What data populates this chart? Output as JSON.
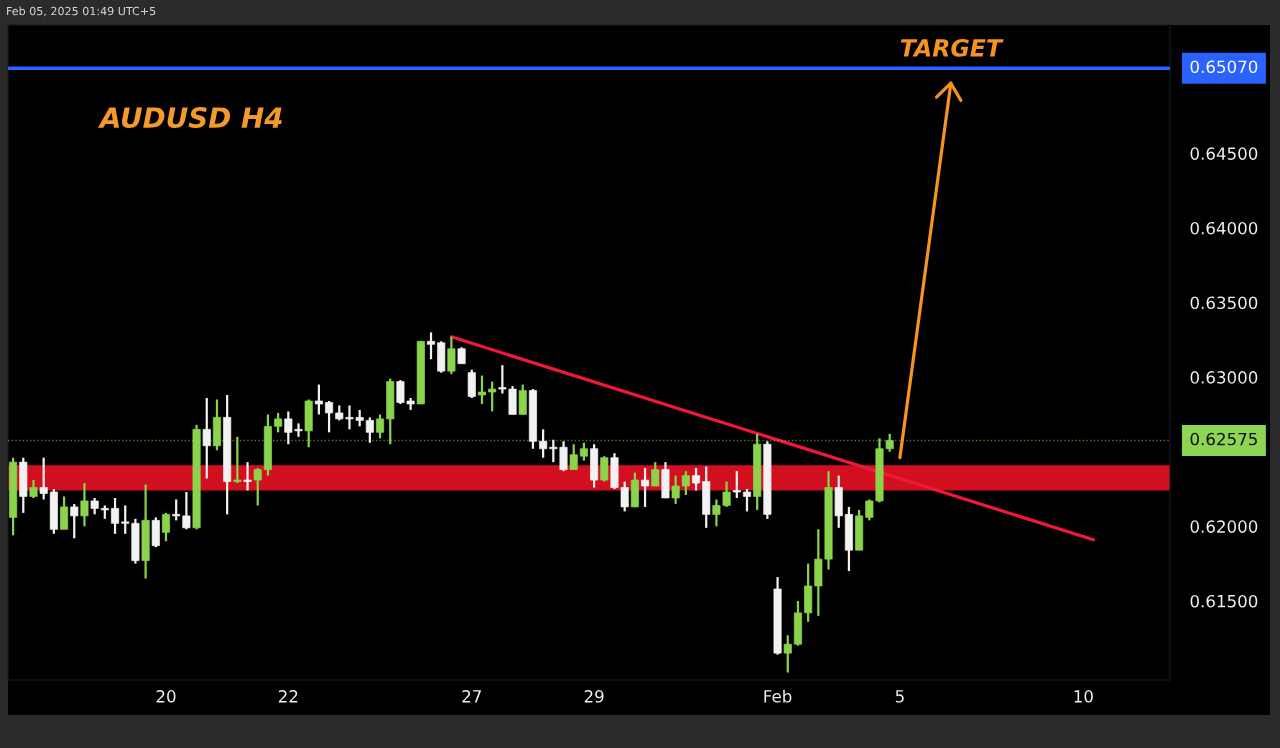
{
  "chart_data": {
    "type": "candlestick",
    "title": "AUDUSD H4",
    "annotations": [
      "TARGET",
      "Feb 05, 2025 01:49 UTC+5"
    ],
    "categories": [
      null,
      null,
      null,
      null,
      null,
      null,
      null,
      null,
      null,
      null,
      null,
      null,
      null,
      null,
      null,
      "20",
      null,
      null,
      null,
      null,
      null,
      null,
      null,
      null,
      null,
      null,
      null,
      "22",
      null,
      null,
      null,
      null,
      null,
      null,
      null,
      null,
      null,
      null,
      null,
      null,
      null,
      null,
      null,
      null,
      null,
      "27",
      null,
      null,
      null,
      null,
      null,
      null,
      null,
      null,
      null,
      null,
      null,
      "29",
      null,
      null,
      null,
      null,
      null,
      null,
      null,
      null,
      null,
      null,
      null,
      null,
      null,
      null,
      null,
      null,
      null,
      "Feb",
      null,
      null,
      null,
      null,
      null,
      null,
      null,
      null,
      null,
      null,
      null,
      "5",
      null,
      null,
      null,
      null,
      null,
      null,
      null,
      null,
      null,
      null,
      null,
      null,
      null,
      null,
      null,
      null,
      null,
      "10",
      null,
      null,
      null,
      null,
      null,
      null,
      null,
      null
    ],
    "ohlc": [
      [
        0.6206,
        0.6246,
        0.6194,
        0.6243
      ],
      [
        0.6243,
        0.6246,
        0.6209,
        0.622
      ],
      [
        0.622,
        0.6231,
        0.6219,
        0.6226
      ],
      [
        0.6226,
        0.6246,
        0.6218,
        0.6222
      ],
      [
        0.6223,
        0.6225,
        0.6195,
        0.6198
      ],
      [
        0.6198,
        0.622,
        0.6198,
        0.6213
      ],
      [
        0.6213,
        0.6215,
        0.6192,
        0.6207
      ],
      [
        0.6207,
        0.6229,
        0.62,
        0.6217
      ],
      [
        0.6217,
        0.6219,
        0.6208,
        0.6212
      ],
      [
        0.6212,
        0.6214,
        0.6205,
        0.6211
      ],
      [
        0.6212,
        0.6219,
        0.6195,
        0.6202
      ],
      [
        0.6203,
        0.6214,
        0.6195,
        0.6202
      ],
      [
        0.6202,
        0.6205,
        0.6175,
        0.6177
      ],
      [
        0.6177,
        0.6228,
        0.6165,
        0.6204
      ],
      [
        0.6204,
        0.6206,
        0.6186,
        0.6187
      ],
      [
        0.6196,
        0.6209,
        0.619,
        0.6208
      ],
      [
        0.6208,
        0.6218,
        0.6204,
        0.6207
      ],
      [
        0.6207,
        0.6223,
        0.6198,
        0.6199
      ],
      [
        0.6199,
        0.6268,
        0.6198,
        0.6265
      ],
      [
        0.6265,
        0.6286,
        0.6232,
        0.6254
      ],
      [
        0.6254,
        0.6285,
        0.6251,
        0.6273
      ],
      [
        0.6273,
        0.6288,
        0.6208,
        0.623
      ],
      [
        0.623,
        0.626,
        0.6229,
        0.6231
      ],
      [
        0.6231,
        0.6243,
        0.6224,
        0.623
      ],
      [
        0.6231,
        0.6239,
        0.6214,
        0.6238
      ],
      [
        0.6238,
        0.6275,
        0.6234,
        0.6267
      ],
      [
        0.6267,
        0.6276,
        0.6263,
        0.6272
      ],
      [
        0.6272,
        0.6277,
        0.6255,
        0.6263
      ],
      [
        0.6265,
        0.6269,
        0.626,
        0.6264
      ],
      [
        0.6264,
        0.6285,
        0.6253,
        0.6284
      ],
      [
        0.6284,
        0.6295,
        0.6275,
        0.6282
      ],
      [
        0.6283,
        0.6284,
        0.6263,
        0.6276
      ],
      [
        0.6276,
        0.6281,
        0.6271,
        0.6272
      ],
      [
        0.6273,
        0.6281,
        0.6265,
        0.6272
      ],
      [
        0.6273,
        0.6278,
        0.6267,
        0.6271
      ],
      [
        0.6271,
        0.6273,
        0.6256,
        0.6263
      ],
      [
        0.6263,
        0.6275,
        0.6259,
        0.6272
      ],
      [
        0.6272,
        0.6299,
        0.6255,
        0.6297
      ],
      [
        0.6297,
        0.6298,
        0.6282,
        0.6283
      ],
      [
        0.6284,
        0.6286,
        0.6278,
        0.6282
      ],
      [
        0.6282,
        0.6324,
        0.6282,
        0.6324
      ],
      [
        0.6324,
        0.633,
        0.6312,
        0.6322
      ],
      [
        0.6323,
        0.6324,
        0.6303,
        0.6304
      ],
      [
        0.6304,
        0.6327,
        0.6302,
        0.6319
      ],
      [
        0.6319,
        0.632,
        0.6309,
        0.6309
      ],
      [
        0.6303,
        0.6305,
        0.6286,
        0.6287
      ],
      [
        0.6288,
        0.6301,
        0.6282,
        0.629
      ],
      [
        0.629,
        0.6297,
        0.6277,
        0.6292
      ],
      [
        0.6293,
        0.6308,
        0.6289,
        0.6292
      ],
      [
        0.6292,
        0.6294,
        0.6275,
        0.6275
      ],
      [
        0.6275,
        0.6295,
        0.6275,
        0.6291
      ],
      [
        0.6291,
        0.6292,
        0.6252,
        0.6257
      ],
      [
        0.6257,
        0.6265,
        0.6246,
        0.6252
      ],
      [
        0.6253,
        0.6258,
        0.6243,
        0.6252
      ],
      [
        0.6253,
        0.6257,
        0.6237,
        0.6238
      ],
      [
        0.6238,
        0.6255,
        0.6238,
        0.6248
      ],
      [
        0.6247,
        0.6256,
        0.6244,
        0.6252
      ],
      [
        0.6252,
        0.6255,
        0.6226,
        0.6231
      ],
      [
        0.6231,
        0.6247,
        0.623,
        0.6246
      ],
      [
        0.6246,
        0.6249,
        0.6225,
        0.6226
      ],
      [
        0.6226,
        0.623,
        0.621,
        0.6213
      ],
      [
        0.6213,
        0.6236,
        0.6213,
        0.6231
      ],
      [
        0.6231,
        0.6239,
        0.6213,
        0.6227
      ],
      [
        0.6227,
        0.6243,
        0.6227,
        0.6238
      ],
      [
        0.6238,
        0.6243,
        0.6219,
        0.6219
      ],
      [
        0.6219,
        0.6234,
        0.6215,
        0.6227
      ],
      [
        0.6227,
        0.6237,
        0.6221,
        0.6234
      ],
      [
        0.6234,
        0.6239,
        0.6224,
        0.6229
      ],
      [
        0.623,
        0.624,
        0.6199,
        0.6208
      ],
      [
        0.6208,
        0.6218,
        0.62,
        0.6214
      ],
      [
        0.6214,
        0.623,
        0.6213,
        0.6223
      ],
      [
        0.6224,
        0.6237,
        0.6219,
        0.6223
      ],
      [
        0.6223,
        0.6225,
        0.621,
        0.622
      ],
      [
        0.622,
        0.6262,
        0.6211,
        0.6255
      ],
      [
        0.6255,
        0.6257,
        0.6205,
        0.6208
      ],
      [
        0.6158,
        0.6166,
        0.6114,
        0.6115
      ],
      [
        0.6115,
        0.6127,
        0.6102,
        0.6121
      ],
      [
        0.6121,
        0.615,
        0.612,
        0.6142
      ],
      [
        0.6142,
        0.6175,
        0.6136,
        0.616
      ],
      [
        0.616,
        0.6198,
        0.614,
        0.6178
      ],
      [
        0.6178,
        0.6237,
        0.6171,
        0.6226
      ],
      [
        0.6226,
        0.6234,
        0.6199,
        0.6207
      ],
      [
        0.6208,
        0.6213,
        0.617,
        0.6184
      ],
      [
        0.6184,
        0.6211,
        0.6184,
        0.6207
      ],
      [
        0.6206,
        0.6218,
        0.6204,
        0.6217
      ],
      [
        0.6217,
        0.6259,
        0.6216,
        0.6252
      ],
      [
        0.6252,
        0.6262,
        0.625,
        0.62575
      ],
      null,
      null,
      null,
      null,
      null,
      null,
      null,
      null,
      null,
      null,
      null,
      null,
      null,
      null,
      null,
      null,
      null,
      null,
      null,
      null,
      null,
      null,
      null,
      null,
      null,
      null,
      null
    ],
    "colors": [
      "#8bd34c",
      "#f2f2f2",
      "#8bd34c",
      "#f2f2f2",
      "#f2f2f2",
      "#8bd34c",
      "#f2f2f2",
      "#8bd34c",
      "#f2f2f2",
      "#f2f2f2",
      "#f2f2f2",
      "#f2f2f2",
      "#f2f2f2",
      "#8bd34c",
      "#f2f2f2",
      "#8bd34c",
      "#f2f2f2",
      "#f2f2f2",
      "#8bd34c",
      "#f2f2f2",
      "#8bd34c",
      "#f2f2f2",
      "#8bd34c",
      "#f2f2f2",
      "#8bd34c",
      "#8bd34c",
      "#8bd34c",
      "#f2f2f2",
      "#f2f2f2",
      "#8bd34c",
      "#f2f2f2",
      "#f2f2f2",
      "#f2f2f2",
      "#f2f2f2",
      "#f2f2f2",
      "#f2f2f2",
      "#8bd34c",
      "#8bd34c",
      "#f2f2f2",
      "#f2f2f2",
      "#8bd34c",
      "#f2f2f2",
      "#f2f2f2",
      "#8bd34c",
      "#f2f2f2",
      "#f2f2f2",
      "#8bd34c",
      "#8bd34c",
      "#f2f2f2",
      "#f2f2f2",
      "#8bd34c",
      "#f2f2f2",
      "#f2f2f2",
      "#f2f2f2",
      "#f2f2f2",
      "#8bd34c",
      "#8bd34c",
      "#f2f2f2",
      "#8bd34c",
      "#f2f2f2",
      "#f2f2f2",
      "#8bd34c",
      "#f2f2f2",
      "#8bd34c",
      "#f2f2f2",
      "#8bd34c",
      "#8bd34c",
      "#f2f2f2",
      "#f2f2f2",
      "#8bd34c",
      "#8bd34c",
      "#f2f2f2",
      "#f2f2f2",
      "#8bd34c",
      "#f2f2f2",
      "#f2f2f2",
      "#8bd34c",
      "#8bd34c",
      "#8bd34c",
      "#8bd34c",
      "#8bd34c",
      "#f2f2f2",
      "#f2f2f2",
      "#8bd34c",
      "#8bd34c",
      "#8bd34c",
      "#8bd34c",
      null,
      null,
      null,
      null,
      null,
      null,
      null,
      null,
      null,
      null,
      null,
      null,
      null,
      null,
      null,
      null,
      null,
      null,
      null,
      null,
      null,
      null,
      null,
      null,
      null,
      null,
      null
    ],
    "series": [
      {
        "type": "line",
        "color": "#f0183a",
        "values": [
          null,
          null,
          null,
          null,
          null,
          null,
          null,
          null,
          null,
          null,
          null,
          null,
          null,
          null,
          null,
          null,
          null,
          null,
          null,
          null,
          null,
          null,
          null,
          null,
          null,
          null,
          null,
          null,
          null,
          null,
          null,
          null,
          null,
          null,
          null,
          null,
          null,
          null,
          null,
          null,
          null,
          null,
          null,
          0.6327,
          null,
          null,
          null,
          null,
          null,
          null,
          null,
          null,
          null,
          null,
          null,
          null,
          null,
          null,
          null,
          null,
          null,
          null,
          null,
          null,
          null,
          null,
          null,
          null,
          null,
          null,
          null,
          null,
          null,
          null,
          null,
          null,
          null,
          null,
          null,
          null,
          null,
          null,
          null,
          null,
          null,
          null,
          null,
          null,
          null,
          null,
          null,
          null,
          null,
          null,
          null,
          null,
          null,
          null,
          null,
          null,
          null,
          null,
          null,
          null,
          null,
          null,
          0.6191,
          null,
          null,
          null,
          null,
          null,
          null,
          null
        ]
      },
      {
        "type": "line",
        "color": "#f7931e",
        "values": [
          null,
          null,
          null,
          null,
          null,
          null,
          null,
          null,
          null,
          null,
          null,
          null,
          null,
          null,
          null,
          null,
          null,
          null,
          null,
          null,
          null,
          null,
          null,
          null,
          null,
          null,
          null,
          null,
          null,
          null,
          null,
          null,
          null,
          null,
          null,
          null,
          null,
          null,
          null,
          null,
          null,
          null,
          null,
          null,
          null,
          null,
          null,
          null,
          null,
          null,
          null,
          null,
          null,
          null,
          null,
          null,
          null,
          null,
          null,
          null,
          null,
          null,
          null,
          null,
          null,
          null,
          null,
          null,
          null,
          null,
          null,
          null,
          null,
          null,
          null,
          null,
          null,
          null,
          null,
          null,
          null,
          null,
          null,
          null,
          null,
          null,
          null,
          0.6246,
          null,
          null,
          null,
          null,
          0.6497,
          null,
          null,
          null,
          null,
          null,
          null,
          null,
          null,
          null,
          null,
          null,
          null,
          null,
          null,
          null,
          null,
          null,
          null,
          null,
          null,
          null
        ]
      }
    ],
    "ylim": [
      0.6097,
      0.6536
    ],
    "yticks": [
      {
        "value": 0.615,
        "label": "0.61500"
      },
      {
        "value": 0.62,
        "label": "0.62000"
      },
      {
        "value": 0.63,
        "label": "0.63000"
      },
      {
        "value": 0.635,
        "label": "0.63500"
      },
      {
        "value": 0.64,
        "label": "0.64000"
      },
      {
        "value": 0.645,
        "label": "0.64500"
      }
    ],
    "ref_lines": [
      {
        "axis": "y",
        "value": 0.6507,
        "label": "0.65070",
        "color": "#2962ff"
      },
      {
        "axis": "y",
        "value": 0.62575,
        "label": "0.62575",
        "color": "#8ed553",
        "line_style": "dotted"
      }
    ],
    "bands": [
      {
        "axis": "y",
        "from": 0.6224,
        "to": 0.6241,
        "color": "#d10f1f"
      }
    ]
  }
}
